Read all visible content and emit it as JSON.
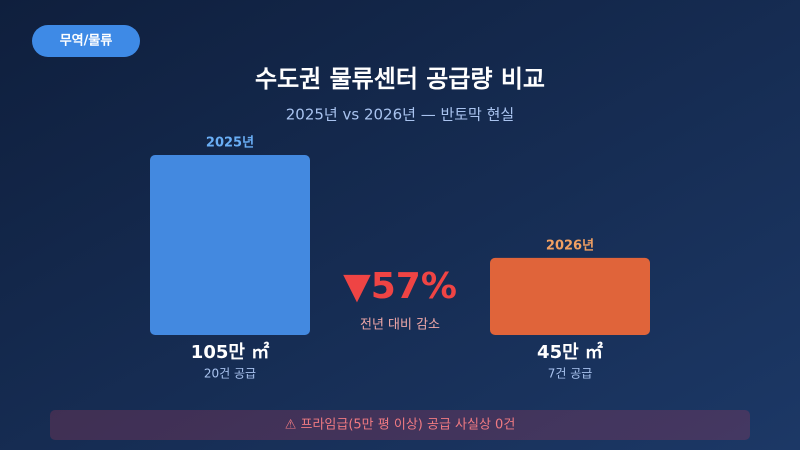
{
  "badge": "무역/물류",
  "chart_data": {
    "type": "bar",
    "title": "수도권 물류센터 공급량 비교",
    "subtitle": "2025년 vs 2026년 — 반토막 현실",
    "categories": [
      "2025년",
      "2026년"
    ],
    "values": [
      105,
      45
    ],
    "value_labels": [
      "105만 ㎡",
      "45만 ㎡"
    ],
    "sub_labels": [
      "20건 공급",
      "7건 공급"
    ],
    "colors": [
      "#4389e0",
      "#e0643a"
    ],
    "label_colors": [
      "#6aaef5",
      "#f2a062"
    ],
    "change": "▼57%",
    "change_note": "전년 대비 감소"
  },
  "footer": "⚠ 프라임급(5만 평 이상) 공급 사실상 0건"
}
